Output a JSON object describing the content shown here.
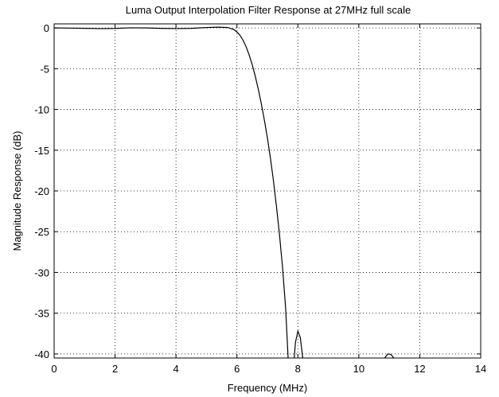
{
  "chart_data": {
    "type": "line",
    "title": "Luma Output Interpolation Filter Response at 27MHz full scale",
    "xlabel": "Frequency (MHz)",
    "ylabel": "Magnitude Response (dB)",
    "xlim": [
      0,
      14
    ],
    "ylim": [
      -40.5,
      0.5
    ],
    "xticks": [
      0,
      2,
      4,
      6,
      8,
      10,
      12,
      14
    ],
    "yticks": [
      0,
      -5,
      -10,
      -15,
      -20,
      -25,
      -30,
      -35,
      -40
    ],
    "grid": true,
    "series": [
      {
        "segments": [
          [
            [
              0,
              0
            ],
            [
              0.5,
              -0.02
            ],
            [
              1,
              -0.05
            ],
            [
              1.5,
              -0.08
            ],
            [
              2,
              -0.06
            ],
            [
              2.5,
              0.02
            ],
            [
              3,
              0.0
            ],
            [
              3.5,
              -0.05
            ],
            [
              4,
              -0.08
            ],
            [
              4.5,
              -0.05
            ],
            [
              5,
              0.05
            ],
            [
              5.4,
              0.1
            ],
            [
              5.7,
              0.05
            ],
            [
              5.9,
              -0.2
            ],
            [
              6.0,
              -0.5
            ],
            [
              6.1,
              -0.9
            ],
            [
              6.2,
              -1.5
            ],
            [
              6.3,
              -2.3
            ],
            [
              6.4,
              -3.3
            ],
            [
              6.5,
              -4.5
            ],
            [
              6.6,
              -5.9
            ],
            [
              6.7,
              -7.5
            ],
            [
              6.8,
              -9.3
            ],
            [
              6.9,
              -11.3
            ],
            [
              7.0,
              -13.5
            ],
            [
              7.1,
              -16.0
            ],
            [
              7.2,
              -18.8
            ],
            [
              7.3,
              -22.0
            ],
            [
              7.4,
              -25.5
            ],
            [
              7.5,
              -29.5
            ],
            [
              7.6,
              -34.5
            ],
            [
              7.68,
              -40.5
            ]
          ],
          [
            [
              7.88,
              -40.5
            ],
            [
              7.92,
              -38.6
            ],
            [
              8.0,
              -37.2
            ],
            [
              8.08,
              -38.0
            ],
            [
              8.16,
              -40.5
            ]
          ],
          [
            [
              10.85,
              -40.5
            ],
            [
              10.95,
              -40.0
            ],
            [
              11.05,
              -40.05
            ],
            [
              11.15,
              -40.5
            ]
          ]
        ]
      }
    ]
  }
}
